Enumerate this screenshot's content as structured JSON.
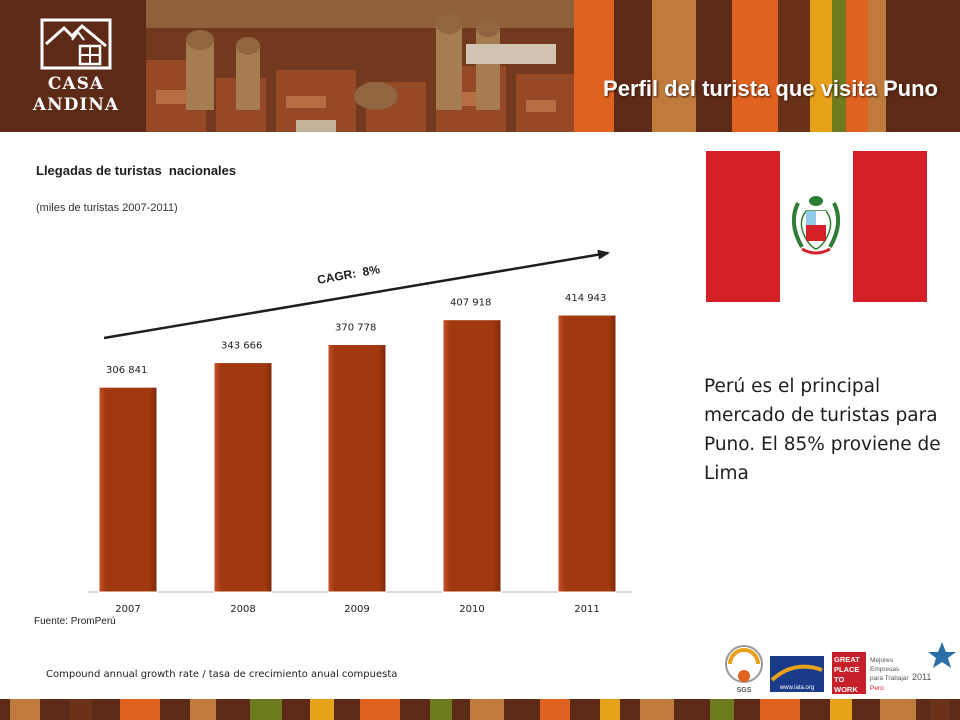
{
  "header": {
    "title": "Perfil del turista que visita Puno",
    "logo_line1": "CASA",
    "logo_line2": "ANDINA"
  },
  "chart_data": {
    "type": "bar",
    "title": "Llegadas de turistas  nacionales",
    "subtitle": "(miles de turistas 2007-2011)",
    "categories": [
      "2007",
      "2008",
      "2009",
      "2010",
      "2011"
    ],
    "values": [
      306841,
      343666,
      370778,
      407918,
      414943
    ],
    "value_labels": [
      "306 841",
      "343 666",
      "370 778",
      "407 918",
      "414 943"
    ],
    "annotation": "CAGR:  8%",
    "bar_color": "#a1380f",
    "grid": false
  },
  "source": "Fuente: PromPerú",
  "footnote": "Compound annual growth rate / tasa de crecimiento anual compuesta",
  "callout": "Perú es el principal mercado de turistas para Puno. El 85% proviene de Lima",
  "badges": {
    "gptw_line1": "GREAT",
    "gptw_line2": "PLACE",
    "gptw_line3": "TO",
    "gptw_line4": "WORK",
    "gptw_text1": "Mejores",
    "gptw_text2": "Empresas",
    "gptw_text3": "para Trabajar",
    "gptw_year": "2011",
    "gptw_country": "Perú",
    "sgs_label": "SGS",
    "iata_label": "www.iata.org"
  },
  "colors": {
    "header_bg": "#5c2a17",
    "stripe_orange": "#e0621f",
    "stripe_green": "#6e7a1e",
    "stripe_gold": "#e8a21a",
    "stripe_tan": "#c07a3c",
    "flag_red": "#d32029"
  }
}
